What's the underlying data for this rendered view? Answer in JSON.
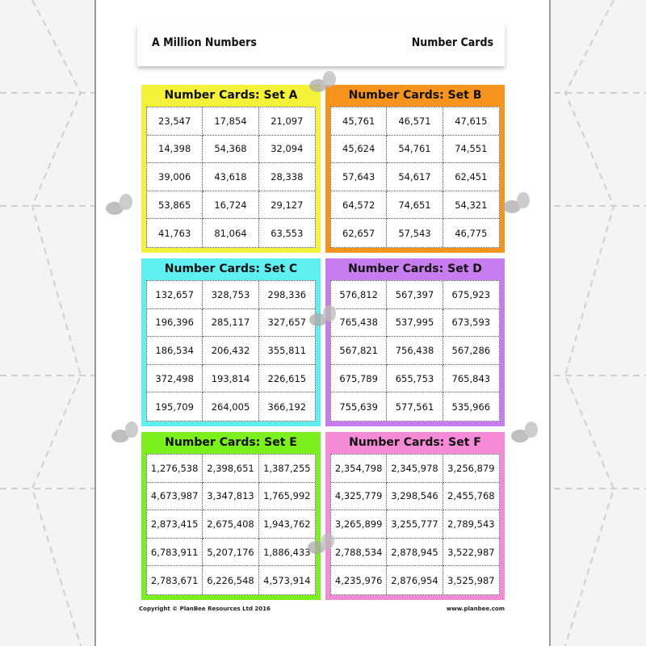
{
  "header": {
    "left_title": "A Million Numbers",
    "right_title": "Number Cards"
  },
  "sets": [
    {
      "title": "Number Cards: Set A",
      "color": "#f5f23a",
      "numbers": [
        "23,547",
        "17,854",
        "21,097",
        "14,398",
        "54,368",
        "32,094",
        "39,006",
        "43,618",
        "28,338",
        "53,865",
        "16,724",
        "29,127",
        "41,763",
        "81,064",
        "63,553"
      ]
    },
    {
      "title": "Number Cards: Set B",
      "color": "#f7941d",
      "numbers": [
        "45,761",
        "46,571",
        "47,615",
        "45,624",
        "54,761",
        "74,551",
        "57,643",
        "54,617",
        "62,451",
        "64,572",
        "74,651",
        "54,321",
        "62,657",
        "57,543",
        "46,775"
      ]
    },
    {
      "title": "Number Cards: Set C",
      "color": "#5ff0f2",
      "numbers": [
        "132,657",
        "328,753",
        "298,336",
        "196,396",
        "285,117",
        "327,657",
        "186,534",
        "206,432",
        "355,811",
        "372,498",
        "193,814",
        "226,615",
        "195,709",
        "264,005",
        "366,192"
      ]
    },
    {
      "title": "Number Cards: Set D",
      "color": "#c77df0",
      "numbers": [
        "576,812",
        "567,397",
        "675,923",
        "765,438",
        "537,995",
        "673,593",
        "567,821",
        "756,438",
        "567,286",
        "675,789",
        "655,753",
        "765,843",
        "755,639",
        "577,561",
        "535,966"
      ]
    },
    {
      "title": "Number Cards: Set E",
      "color": "#7cf01e",
      "numbers": [
        "1,276,538",
        "2,398,651",
        "1,387,255",
        "4,673,987",
        "3,347,813",
        "1,765,992",
        "2,873,415",
        "2,675,408",
        "1,943,762",
        "6,783,911",
        "5,207,176",
        "1,886,433",
        "2,783,671",
        "6,226,548",
        "4,573,914"
      ]
    },
    {
      "title": "Number Cards: Set F",
      "color": "#f58ad6",
      "numbers": [
        "2,354,798",
        "2,345,978",
        "3,256,879",
        "4,325,779",
        "3,298,546",
        "2,455,768",
        "3,265,899",
        "3,255,777",
        "2,789,543",
        "2,788,534",
        "2,878,945",
        "3,522,987",
        "4,235,976",
        "2,876,954",
        "3,525,987"
      ]
    }
  ],
  "footer": {
    "copyright": "Copyright © PlanBee Resources Ltd 2016",
    "website": "www.planbee.com"
  }
}
